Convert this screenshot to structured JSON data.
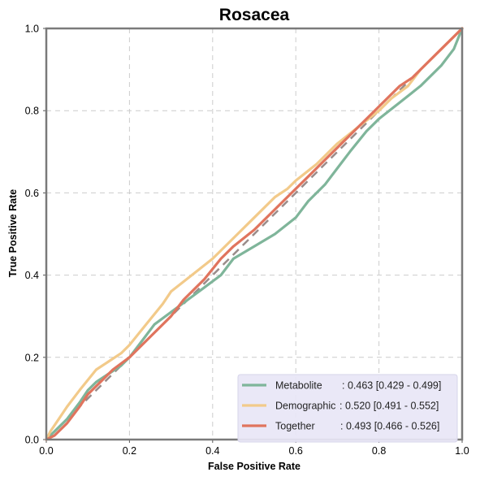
{
  "chart_data": {
    "type": "line",
    "title": "Rosacea",
    "xlabel": "False Positive Rate",
    "ylabel": "True Positive Rate",
    "xlim": [
      0,
      1
    ],
    "ylim": [
      0,
      1
    ],
    "x_ticks": [
      "0.0",
      "0.2",
      "0.4",
      "0.6",
      "0.8",
      "1.0"
    ],
    "y_ticks": [
      "0.0",
      "0.2",
      "0.4",
      "0.6",
      "0.8",
      "1.0"
    ],
    "grid": true,
    "legend_position": "bottom-right",
    "diagonal_color": "#9a8c8a",
    "series": [
      {
        "name": "Metabolite",
        "legend_name": "Metabolite",
        "legend_score": ": 0.463 [0.429 - 0.499]",
        "color": "#7fb59a",
        "x": [
          0,
          0.01,
          0.03,
          0.05,
          0.08,
          0.1,
          0.12,
          0.15,
          0.18,
          0.2,
          0.23,
          0.26,
          0.3,
          0.34,
          0.38,
          0.42,
          0.45,
          0.5,
          0.55,
          0.6,
          0.63,
          0.67,
          0.7,
          0.73,
          0.77,
          0.8,
          0.85,
          0.9,
          0.95,
          0.98,
          1.0
        ],
        "y": [
          0,
          0.01,
          0.03,
          0.05,
          0.09,
          0.12,
          0.14,
          0.16,
          0.18,
          0.2,
          0.24,
          0.28,
          0.31,
          0.34,
          0.37,
          0.4,
          0.44,
          0.47,
          0.5,
          0.54,
          0.58,
          0.62,
          0.66,
          0.7,
          0.75,
          0.78,
          0.82,
          0.86,
          0.91,
          0.95,
          1.0
        ]
      },
      {
        "name": "Demographic",
        "legend_name": "Demographic",
        "legend_score": ": 0.520 [0.491 - 0.552]",
        "color": "#f2ca8a",
        "x": [
          0,
          0.01,
          0.03,
          0.05,
          0.08,
          0.12,
          0.15,
          0.18,
          0.2,
          0.24,
          0.28,
          0.3,
          0.35,
          0.4,
          0.45,
          0.5,
          0.55,
          0.58,
          0.6,
          0.65,
          0.7,
          0.75,
          0.8,
          0.83,
          0.87,
          0.9,
          0.95,
          1.0
        ],
        "y": [
          0,
          0.02,
          0.05,
          0.08,
          0.12,
          0.17,
          0.19,
          0.21,
          0.23,
          0.28,
          0.33,
          0.36,
          0.4,
          0.44,
          0.49,
          0.54,
          0.59,
          0.61,
          0.63,
          0.67,
          0.72,
          0.76,
          0.8,
          0.83,
          0.86,
          0.9,
          0.95,
          1.0
        ]
      },
      {
        "name": "Together",
        "legend_name": "Together",
        "legend_score": ": 0.493 [0.466 - 0.526]",
        "color": "#e0745e",
        "x": [
          0,
          0.02,
          0.05,
          0.08,
          0.1,
          0.13,
          0.16,
          0.2,
          0.23,
          0.25,
          0.3,
          0.33,
          0.38,
          0.42,
          0.45,
          0.5,
          0.55,
          0.6,
          0.63,
          0.67,
          0.7,
          0.75,
          0.8,
          0.85,
          0.88,
          0.9,
          0.95,
          1.0
        ],
        "y": [
          0,
          0.01,
          0.04,
          0.08,
          0.11,
          0.14,
          0.17,
          0.2,
          0.23,
          0.25,
          0.3,
          0.34,
          0.39,
          0.44,
          0.47,
          0.51,
          0.56,
          0.61,
          0.64,
          0.68,
          0.71,
          0.76,
          0.81,
          0.86,
          0.88,
          0.9,
          0.95,
          1.0
        ]
      }
    ]
  }
}
